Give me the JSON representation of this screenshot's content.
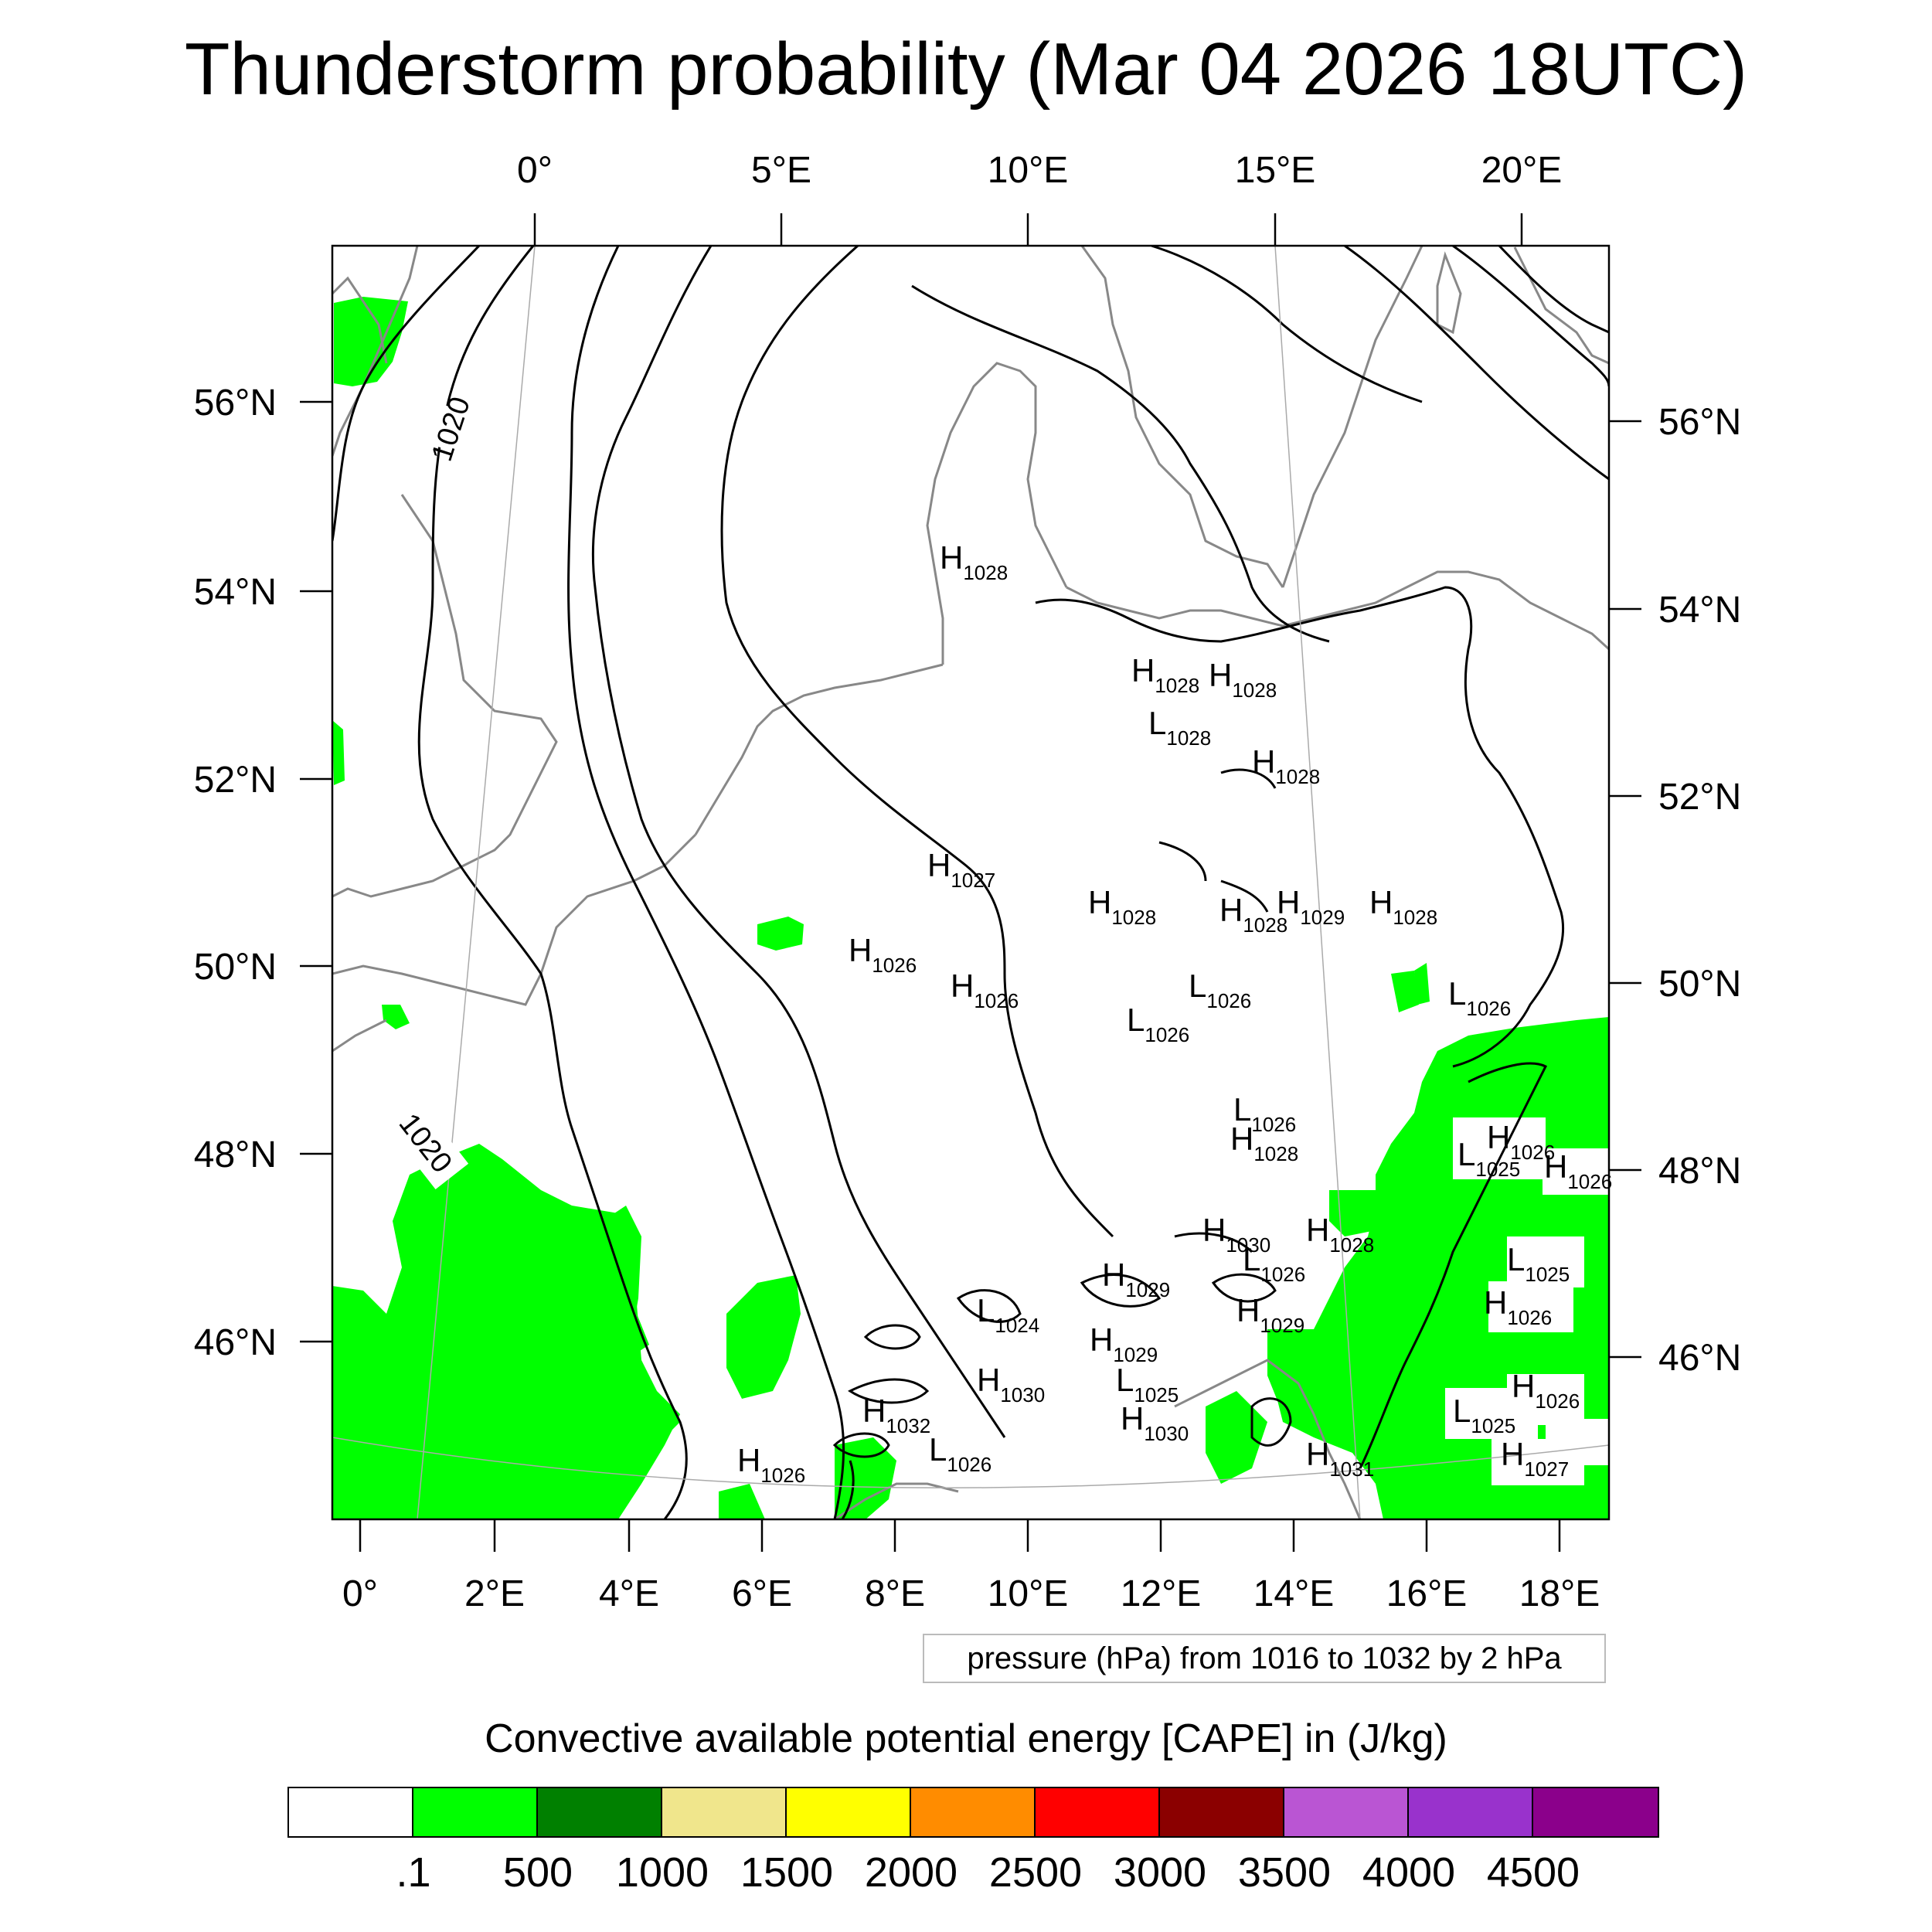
{
  "title": "Thunderstorm probability (Mar 04 2026 18UTC)",
  "map": {
    "top_lon_labels": [
      "0°",
      "5°E",
      "10°E",
      "15°E",
      "20°E"
    ],
    "left_lat_labels": [
      "56°N",
      "54°N",
      "52°N",
      "50°N",
      "48°N",
      "46°N"
    ],
    "right_lat_labels": [
      "56°N",
      "54°N",
      "52°N",
      "50°N",
      "48°N",
      "46°N"
    ],
    "bottom_lon_labels": [
      "0°",
      "2°E",
      "4°E",
      "6°E",
      "8°E",
      "10°E",
      "12°E",
      "14°E",
      "16°E",
      "18°E"
    ],
    "contour_labels": [
      "1020",
      "1020"
    ],
    "pressure_centers": [
      {
        "type": "H",
        "value": "1028"
      },
      {
        "type": "H",
        "value": "1028"
      },
      {
        "type": "H",
        "value": "1028"
      },
      {
        "type": "L",
        "value": "1028"
      },
      {
        "type": "H",
        "value": "1028"
      },
      {
        "type": "H",
        "value": "1027"
      },
      {
        "type": "H",
        "value": "1028"
      },
      {
        "type": "H",
        "value": "1028"
      },
      {
        "type": "H",
        "value": "1029"
      },
      {
        "type": "H",
        "value": "1028"
      },
      {
        "type": "H",
        "value": "1026"
      },
      {
        "type": "H",
        "value": "1026"
      },
      {
        "type": "L",
        "value": "1026"
      },
      {
        "type": "L",
        "value": "1026"
      },
      {
        "type": "L",
        "value": "1026"
      },
      {
        "type": "L",
        "value": "1026"
      },
      {
        "type": "H",
        "value": "1026"
      },
      {
        "type": "H",
        "value": "1028"
      },
      {
        "type": "H",
        "value": "1026"
      },
      {
        "type": "L",
        "value": "1025"
      },
      {
        "type": "H",
        "value": "1030"
      },
      {
        "type": "H",
        "value": "1028"
      },
      {
        "type": "L",
        "value": "1026"
      },
      {
        "type": "L",
        "value": "1025"
      },
      {
        "type": "H",
        "value": "1029"
      },
      {
        "type": "H",
        "value": "1026"
      },
      {
        "type": "L",
        "value": "1024"
      },
      {
        "type": "H",
        "value": "1029"
      },
      {
        "type": "H",
        "value": "1029"
      },
      {
        "type": "H",
        "value": "1030"
      },
      {
        "type": "L",
        "value": "1025"
      },
      {
        "type": "H",
        "value": "1026"
      },
      {
        "type": "H",
        "value": "1032"
      },
      {
        "type": "H",
        "value": "1030"
      },
      {
        "type": "L",
        "value": "1025"
      },
      {
        "type": "L",
        "value": "1026"
      },
      {
        "type": "H",
        "value": "1026"
      },
      {
        "type": "H",
        "value": "1031"
      },
      {
        "type": "H",
        "value": "1027"
      }
    ]
  },
  "pressure_note": "pressure (hPa) from 1016 to 1032 by 2 hPa",
  "legend": {
    "title": "Convective available potential energy [CAPE] in (J/kg)",
    "colors": [
      "#ffffff",
      "#00ff00",
      "#008000",
      "#f0e68c",
      "#ffff00",
      "#ff8c00",
      "#ff0000",
      "#8b0000",
      "#ba55d3",
      "#9932cc",
      "#8b008b"
    ],
    "labels": [
      ".1",
      "500",
      "1000",
      "1500",
      "2000",
      "2500",
      "3000",
      "3500",
      "4000",
      "4500"
    ]
  },
  "colors": {
    "cape_fill": "#00ff00",
    "coastline": "#888888",
    "isobar": "#000000"
  }
}
